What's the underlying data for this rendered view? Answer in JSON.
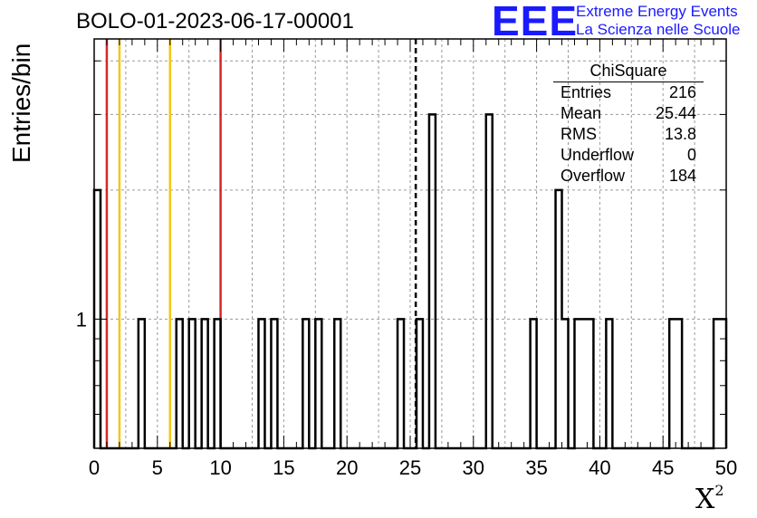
{
  "title": "BOLO-01-2023-06-17-00001",
  "logo": {
    "mark": "EEE",
    "line1": "Extreme Energy Events",
    "line2": "La Scienza nelle Scuole"
  },
  "stats": {
    "name": "ChiSquare",
    "rows": [
      {
        "key": "Entries",
        "value": "216"
      },
      {
        "key": "Mean",
        "value": "25.44"
      },
      {
        "key": "RMS",
        "value": "13.8"
      },
      {
        "key": "Underflow",
        "value": "0"
      },
      {
        "key": "Overflow",
        "value": "184"
      }
    ]
  },
  "chart_data": {
    "type": "histogram",
    "title": "BOLO-01-2023-06-17-00001",
    "xlabel": "X",
    "xlabel_superscript": "2",
    "ylabel": "Entries/bin",
    "xlim": [
      0,
      50
    ],
    "ylim": [
      0.5,
      4.5
    ],
    "yscale": "log",
    "bin_width": 0.5,
    "xticks": [
      "0",
      "5",
      "10",
      "15",
      "20",
      "25",
      "30",
      "35",
      "40",
      "45",
      "50"
    ],
    "yticks": [
      {
        "value": 1,
        "label": "1"
      }
    ],
    "grid": true,
    "bins": [
      {
        "x": 0.0,
        "count": 2
      },
      {
        "x": 3.5,
        "count": 1
      },
      {
        "x": 6.5,
        "count": 1
      },
      {
        "x": 7.5,
        "count": 1
      },
      {
        "x": 8.5,
        "count": 1
      },
      {
        "x": 9.5,
        "count": 1
      },
      {
        "x": 13.0,
        "count": 1
      },
      {
        "x": 14.0,
        "count": 1
      },
      {
        "x": 16.5,
        "count": 1
      },
      {
        "x": 17.5,
        "count": 1
      },
      {
        "x": 19.0,
        "count": 1
      },
      {
        "x": 24.0,
        "count": 1
      },
      {
        "x": 25.5,
        "count": 1
      },
      {
        "x": 26.5,
        "count": 3
      },
      {
        "x": 31.0,
        "count": 3
      },
      {
        "x": 34.5,
        "count": 1
      },
      {
        "x": 36.5,
        "count": 2
      },
      {
        "x": 37.0,
        "count": 1
      },
      {
        "x": 38.0,
        "count": 1
      },
      {
        "x": 38.5,
        "count": 1
      },
      {
        "x": 39.0,
        "count": 1
      },
      {
        "x": 40.5,
        "count": 1
      },
      {
        "x": 45.5,
        "count": 1
      },
      {
        "x": 46.0,
        "count": 1
      },
      {
        "x": 49.0,
        "count": 1
      },
      {
        "x": 49.5,
        "count": 1
      }
    ],
    "reference_lines": [
      {
        "x": 1,
        "color": "#d62728",
        "style": "solid"
      },
      {
        "x": 2,
        "color": "#f5c518",
        "style": "solid"
      },
      {
        "x": 6,
        "color": "#f5c518",
        "style": "solid"
      },
      {
        "x": 10,
        "color": "#d62728",
        "style": "solid"
      },
      {
        "x": 25.44,
        "color": "#000000",
        "style": "dashed"
      }
    ]
  }
}
